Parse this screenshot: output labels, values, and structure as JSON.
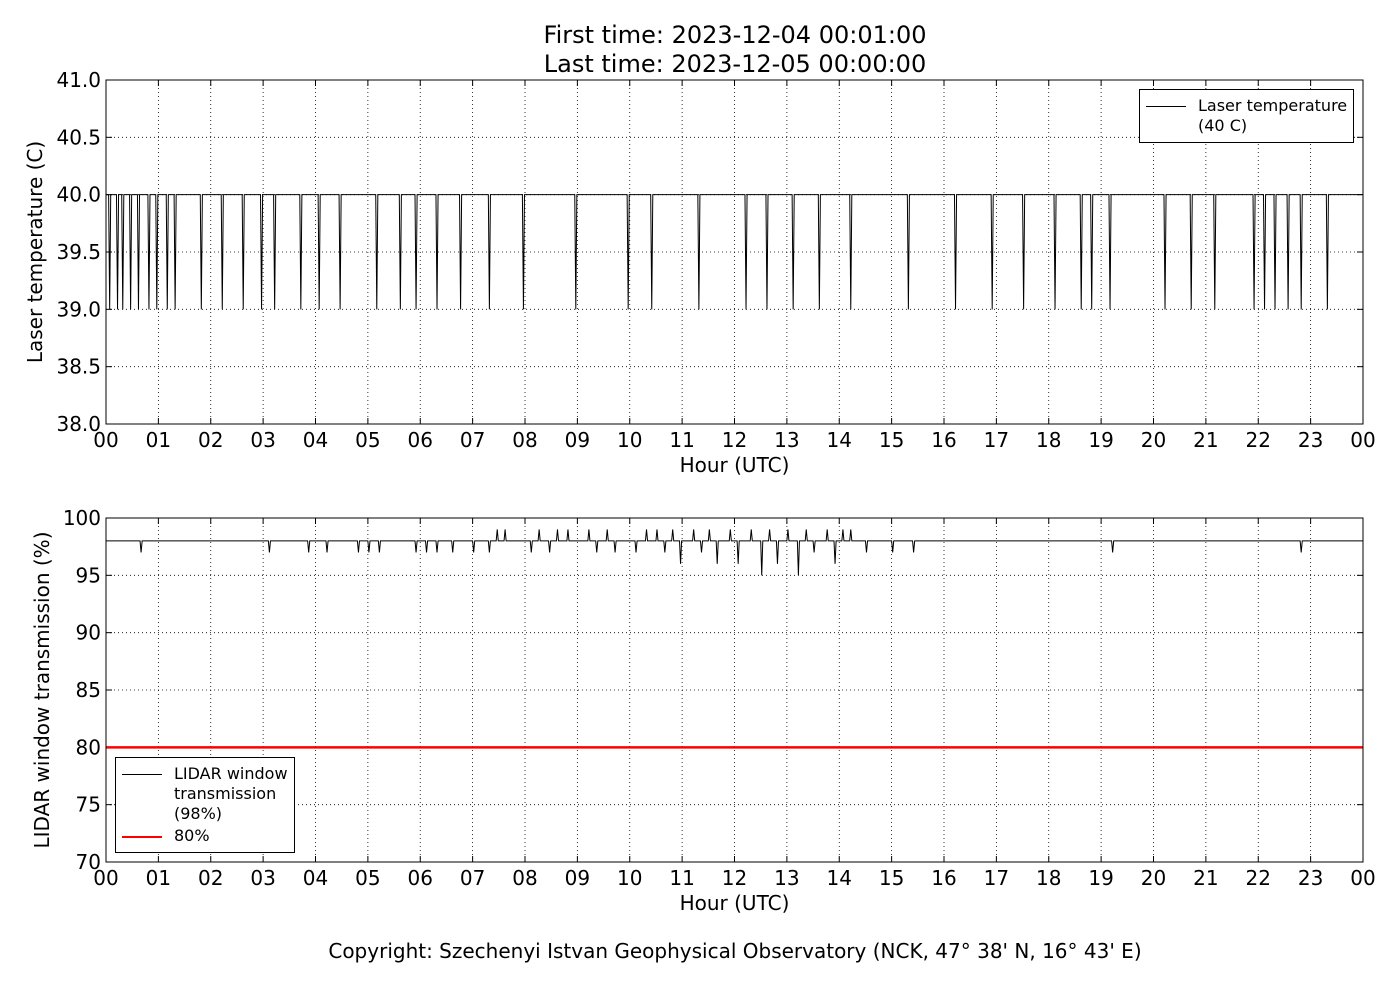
{
  "title_lines": [
    "First time: 2023-12-04 00:01:00",
    "Last time: 2023-12-05 00:00:00"
  ],
  "footer": "Copyright: Szechenyi Istvan Geophysical Observatory (NCK, 47° 38' N, 16° 43' E)",
  "chart_data": [
    {
      "type": "line",
      "xlabel": "Hour (UTC)",
      "ylabel": "Laser temperature (C)",
      "grid": true,
      "legend": "upper right",
      "xlim": [
        0,
        24
      ],
      "xticks": [
        {
          "value": 0,
          "label": "00"
        },
        {
          "value": 1,
          "label": "01"
        },
        {
          "value": 2,
          "label": "02"
        },
        {
          "value": 3,
          "label": "03"
        },
        {
          "value": 4,
          "label": "04"
        },
        {
          "value": 5,
          "label": "05"
        },
        {
          "value": 6,
          "label": "06"
        },
        {
          "value": 7,
          "label": "07"
        },
        {
          "value": 8,
          "label": "08"
        },
        {
          "value": 9,
          "label": "09"
        },
        {
          "value": 10,
          "label": "10"
        },
        {
          "value": 11,
          "label": "11"
        },
        {
          "value": 12,
          "label": "12"
        },
        {
          "value": 13,
          "label": "13"
        },
        {
          "value": 14,
          "label": "14"
        },
        {
          "value": 15,
          "label": "15"
        },
        {
          "value": 16,
          "label": "16"
        },
        {
          "value": 17,
          "label": "17"
        },
        {
          "value": 18,
          "label": "18"
        },
        {
          "value": 19,
          "label": "19"
        },
        {
          "value": 20,
          "label": "20"
        },
        {
          "value": 21,
          "label": "21"
        },
        {
          "value": 22,
          "label": "22"
        },
        {
          "value": 23,
          "label": "23"
        },
        {
          "value": 24,
          "label": "00"
        }
      ],
      "ylim": [
        38,
        41
      ],
      "yticks": [
        {
          "value": 38,
          "label": "38.0"
        },
        {
          "value": 38.5,
          "label": "38.5"
        },
        {
          "value": 39,
          "label": "39.0"
        },
        {
          "value": 39.5,
          "label": "39.5"
        },
        {
          "value": 40,
          "label": "40.0"
        },
        {
          "value": 40.5,
          "label": "40.5"
        },
        {
          "value": 41,
          "label": "41.0"
        }
      ],
      "series": [
        {
          "name": "Laser temperature\n(40 C)",
          "color": "#000000",
          "width": 1,
          "x": [
            0,
            0.05,
            0.07,
            0.09,
            0.2,
            0.22,
            0.24,
            0.3,
            0.32,
            0.34,
            0.45,
            0.47,
            0.49,
            0.6,
            0.62,
            0.64,
            0.8,
            0.82,
            0.84,
            0.95,
            0.97,
            0.99,
            1.15,
            1.17,
            1.19,
            1.3,
            1.32,
            1.34,
            1.8,
            1.82,
            1.84,
            2.2,
            2.22,
            2.24,
            2.6,
            2.62,
            2.64,
            2.95,
            2.97,
            2.99,
            3.2,
            3.22,
            3.24,
            3.7,
            3.72,
            3.74,
            4.05,
            4.07,
            4.09,
            4.45,
            4.47,
            4.49,
            5.15,
            5.17,
            5.19,
            5.6,
            5.62,
            5.64,
            5.9,
            5.92,
            5.94,
            6.3,
            6.32,
            6.34,
            6.75,
            6.77,
            6.79,
            7.3,
            7.32,
            7.34,
            7.95,
            7.97,
            7.99,
            8.95,
            8.97,
            8.99,
            9.95,
            9.97,
            9.99,
            10.4,
            10.42,
            10.44,
            11.3,
            11.32,
            11.34,
            12.2,
            12.22,
            12.24,
            12.6,
            12.62,
            12.64,
            13.1,
            13.12,
            13.14,
            13.6,
            13.62,
            13.64,
            14.2,
            14.22,
            14.24,
            15.3,
            15.32,
            15.34,
            16.2,
            16.22,
            16.24,
            16.9,
            16.92,
            16.94,
            17.5,
            17.52,
            17.54,
            18.1,
            18.12,
            18.14,
            18.6,
            18.62,
            18.64,
            18.8,
            18.82,
            18.84,
            19.15,
            19.17,
            19.19,
            20.2,
            20.22,
            20.24,
            20.7,
            20.72,
            20.74,
            21.15,
            21.17,
            21.19,
            21.9,
            21.92,
            21.94,
            22.1,
            22.12,
            22.14,
            22.3,
            22.32,
            22.34,
            22.55,
            22.57,
            22.59,
            22.8,
            22.82,
            22.84,
            23.3,
            23.32,
            23.34,
            24
          ],
          "values": [
            40,
            40,
            39,
            40,
            40,
            39,
            40,
            40,
            39,
            40,
            40,
            39,
            40,
            40,
            39,
            40,
            40,
            39,
            40,
            40,
            39,
            40,
            40,
            39,
            40,
            40,
            39,
            40,
            40,
            39,
            40,
            40,
            39,
            40,
            40,
            39,
            40,
            40,
            39,
            40,
            40,
            39,
            40,
            40,
            39,
            40,
            40,
            39,
            40,
            40,
            39,
            40,
            40,
            39,
            40,
            40,
            39,
            40,
            40,
            39,
            40,
            40,
            39,
            40,
            40,
            39,
            40,
            40,
            39,
            40,
            40,
            39,
            40,
            40,
            39,
            40,
            40,
            39,
            40,
            40,
            39,
            40,
            40,
            39,
            40,
            40,
            39,
            40,
            40,
            39,
            40,
            40,
            39,
            40,
            40,
            39,
            40,
            40,
            39,
            40,
            40,
            39,
            40,
            40,
            39,
            40,
            40,
            39,
            40,
            40,
            39,
            40,
            40,
            39,
            40,
            40,
            39,
            40,
            40,
            39,
            40,
            40,
            39,
            40,
            40,
            39,
            40,
            40,
            39,
            40,
            40,
            39,
            40,
            40,
            39,
            40,
            40,
            39,
            40,
            40,
            39,
            40,
            40,
            39,
            40,
            40,
            39,
            40,
            40,
            39,
            40,
            40
          ]
        }
      ]
    },
    {
      "type": "line",
      "xlabel": "Hour (UTC)",
      "ylabel": "LIDAR window transmission (%)",
      "grid": true,
      "legend": "lower left",
      "xlim": [
        0,
        24
      ],
      "xticks": [
        {
          "value": 0,
          "label": "00"
        },
        {
          "value": 1,
          "label": "01"
        },
        {
          "value": 2,
          "label": "02"
        },
        {
          "value": 3,
          "label": "03"
        },
        {
          "value": 4,
          "label": "04"
        },
        {
          "value": 5,
          "label": "05"
        },
        {
          "value": 6,
          "label": "06"
        },
        {
          "value": 7,
          "label": "07"
        },
        {
          "value": 8,
          "label": "08"
        },
        {
          "value": 9,
          "label": "09"
        },
        {
          "value": 10,
          "label": "10"
        },
        {
          "value": 11,
          "label": "11"
        },
        {
          "value": 12,
          "label": "12"
        },
        {
          "value": 13,
          "label": "13"
        },
        {
          "value": 14,
          "label": "14"
        },
        {
          "value": 15,
          "label": "15"
        },
        {
          "value": 16,
          "label": "16"
        },
        {
          "value": 17,
          "label": "17"
        },
        {
          "value": 18,
          "label": "18"
        },
        {
          "value": 19,
          "label": "19"
        },
        {
          "value": 20,
          "label": "20"
        },
        {
          "value": 21,
          "label": "21"
        },
        {
          "value": 22,
          "label": "22"
        },
        {
          "value": 23,
          "label": "23"
        },
        {
          "value": 24,
          "label": "00"
        }
      ],
      "ylim": [
        70,
        100
      ],
      "yticks": [
        70,
        75,
        80,
        85,
        90,
        95,
        100
      ],
      "series": [
        {
          "name": "LIDAR window\ntransmission\n(98%)",
          "color": "#000000",
          "width": 1,
          "x": [
            0,
            0.65,
            0.67,
            0.69,
            3.1,
            3.12,
            3.14,
            3.85,
            3.87,
            3.89,
            4.2,
            4.22,
            4.24,
            4.8,
            4.82,
            4.84,
            5.0,
            5.02,
            5.04,
            5.2,
            5.22,
            5.24,
            5.9,
            5.92,
            5.94,
            6.1,
            6.12,
            6.14,
            6.3,
            6.32,
            6.34,
            6.6,
            6.62,
            6.64,
            7.0,
            7.02,
            7.04,
            7.3,
            7.32,
            7.34,
            7.45,
            7.47,
            7.49,
            7.6,
            7.62,
            7.64,
            8.1,
            8.12,
            8.14,
            8.25,
            8.27,
            8.29,
            8.45,
            8.47,
            8.49,
            8.6,
            8.62,
            8.64,
            8.8,
            8.82,
            8.84,
            9.2,
            9.22,
            9.24,
            9.35,
            9.37,
            9.39,
            9.55,
            9.57,
            9.59,
            9.7,
            9.72,
            9.74,
            10.1,
            10.12,
            10.14,
            10.3,
            10.32,
            10.34,
            10.5,
            10.52,
            10.54,
            10.65,
            10.67,
            10.69,
            10.8,
            10.82,
            10.84,
            10.95,
            10.97,
            10.99,
            11.2,
            11.22,
            11.24,
            11.35,
            11.37,
            11.39,
            11.5,
            11.52,
            11.54,
            11.65,
            11.67,
            11.69,
            11.9,
            11.92,
            11.94,
            12.05,
            12.07,
            12.09,
            12.3,
            12.32,
            12.34,
            12.5,
            12.52,
            12.54,
            12.65,
            12.67,
            12.69,
            12.8,
            12.82,
            12.84,
            13.0,
            13.02,
            13.04,
            13.2,
            13.22,
            13.24,
            13.35,
            13.37,
            13.39,
            13.5,
            13.52,
            13.54,
            13.75,
            13.77,
            13.79,
            13.9,
            13.92,
            13.94,
            14.05,
            14.07,
            14.09,
            14.2,
            14.22,
            14.24,
            14.5,
            14.52,
            14.54,
            15.0,
            15.02,
            15.04,
            15.4,
            15.42,
            15.44,
            19.2,
            19.22,
            19.24,
            22.8,
            22.82,
            22.84,
            24
          ],
          "values": [
            98,
            98,
            97,
            98,
            98,
            97,
            98,
            98,
            97,
            98,
            98,
            97,
            98,
            98,
            97,
            98,
            98,
            97,
            98,
            98,
            97,
            98,
            98,
            97,
            98,
            98,
            97,
            98,
            98,
            97,
            98,
            98,
            97,
            98,
            98,
            97,
            98,
            98,
            97,
            98,
            98,
            99,
            98,
            98,
            99,
            98,
            98,
            97,
            98,
            98,
            99,
            98,
            98,
            97,
            98,
            98,
            99,
            98,
            98,
            99,
            98,
            98,
            99,
            98,
            98,
            97,
            98,
            98,
            99,
            98,
            98,
            97,
            98,
            98,
            97,
            98,
            98,
            99,
            98,
            98,
            99,
            98,
            98,
            97,
            98,
            98,
            99,
            98,
            98,
            96,
            98,
            98,
            99,
            98,
            98,
            97,
            98,
            98,
            99,
            98,
            98,
            96,
            98,
            98,
            99,
            98,
            98,
            96,
            98,
            98,
            99,
            98,
            98,
            95,
            98,
            98,
            99,
            98,
            98,
            96,
            98,
            98,
            99,
            98,
            98,
            95,
            98,
            98,
            99,
            98,
            98,
            97,
            98,
            98,
            99,
            98,
            98,
            96,
            98,
            98,
            99,
            98,
            98,
            99,
            98,
            98,
            97,
            98,
            98,
            97,
            98,
            98,
            97,
            98,
            98,
            97,
            98,
            98,
            97,
            98,
            98
          ]
        },
        {
          "name": "80%",
          "color": "#ff0000",
          "width": 2.5,
          "x": [
            0,
            24
          ],
          "values": [
            80,
            80
          ]
        }
      ]
    }
  ]
}
